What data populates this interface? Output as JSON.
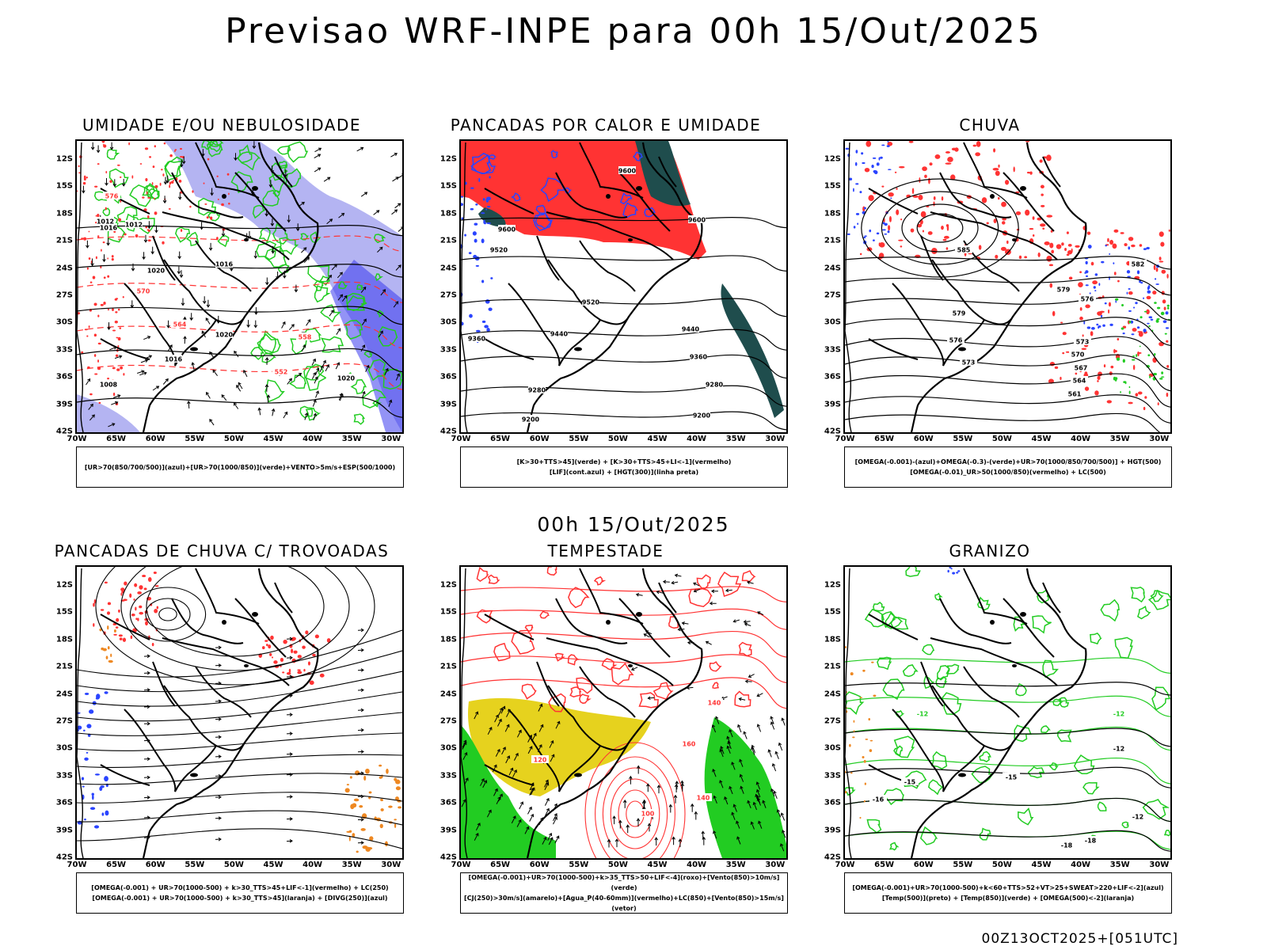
{
  "main_title": "Previsao WRF-INPE  para 00h 15/Out/2025",
  "mid_title": "00h 15/Out/2025",
  "footer": "00Z13OCT2025+[051UTC]",
  "lat_labels": [
    "12S",
    "15S",
    "18S",
    "21S",
    "24S",
    "27S",
    "30S",
    "33S",
    "36S",
    "39S",
    "42S"
  ],
  "lon_labels": [
    "70W",
    "65W",
    "60W",
    "55W",
    "50W",
    "45W",
    "40W",
    "35W",
    "30W"
  ],
  "colors": {
    "blue": "#2a44ff",
    "green": "#22cc22",
    "red": "#ff3333",
    "lavender": "#b4b4f2",
    "darkteal": "#1f4d4d",
    "yellow": "#e6d21e",
    "orange": "#ee8822"
  },
  "panels": [
    {
      "title": "UMIDADE E/OU NEBULOSIDADE",
      "legend": [
        "[UR>70(850/700/500)](azul)+[UR>70(1000/850)](verde)+VENTO>5m/s+ESP(500/1000)"
      ],
      "contour_labels": [
        "1016",
        "1012",
        "1012",
        "1020",
        "1016",
        "1020",
        "1016",
        "1008",
        "570",
        "576",
        "564",
        "558",
        "552",
        "1020"
      ]
    },
    {
      "title": "PANCADAS POR CALOR E UMIDADE",
      "legend": [
        "[K>30+TTS>45](verde) + [K>30+TTS>45+LI<-1](vermelho)",
        "[LIF](cont.azul) + [HGT(300)](linha preta)"
      ],
      "contour_labels": [
        "9600",
        "9600",
        "9520",
        "9520",
        "9440",
        "9440",
        "9360",
        "9360",
        "9280",
        "9280",
        "9200",
        "9200",
        "9600"
      ]
    },
    {
      "title": "CHUVA",
      "legend": [
        "[OMEGA(-0.001)-(azul)+OMEGA(-0.3)-(verde)+UR>70(1000/850/700/500)] + HGT(500)",
        "[OMEGA(-0.01)_UR>50(1000/850)(vermelho) + LC(500)"
      ],
      "contour_labels": [
        "585",
        "582",
        "579",
        "576",
        "573",
        "570",
        "567",
        "564",
        "561",
        "579",
        "576",
        "573"
      ]
    },
    {
      "title": "PANCADAS DE CHUVA C/ TROVOADAS",
      "legend": [
        "[OMEGA(-0.001) + UR>70(1000-500) + k>30_TTS>45+LIF<-1](vermelho) + LC(250)",
        "[OMEGA(-0.001) + UR>70(1000-500) + k>30_TTS>45](laranja) + [DIVG(250)](azul)"
      ],
      "contour_labels": []
    },
    {
      "title": "TEMPESTADE",
      "legend": [
        "[OMEGA(-0.001)+UR>70(1000-500)+k>35_TTS>50+LIF<-4](roxo)+[Vento(850)>10m/s](verde)",
        "[CJ(250)>30m/s](amarelo)+[Agua_P(40-60mm)](vermelho)+LC(850)+[Vento(850)>15m/s](vetor)"
      ],
      "contour_labels": [
        "140",
        "120",
        "140",
        "100",
        "160"
      ]
    },
    {
      "title": "GRANIZO",
      "legend": [
        "[OMEGA(-0.001)+UR>70(1000-500)+k<60+TTS>52+VT>25+SWEAT>220+LIF<-2](azul)",
        "[Temp(500)](preto) + [Temp(850)](verde) + [OMEGA(500)<-2](laranja)"
      ],
      "contour_labels": [
        "-12",
        "-12",
        "-15",
        "-15",
        "-18",
        "-12",
        "-16",
        "-18",
        "-12"
      ]
    }
  ]
}
